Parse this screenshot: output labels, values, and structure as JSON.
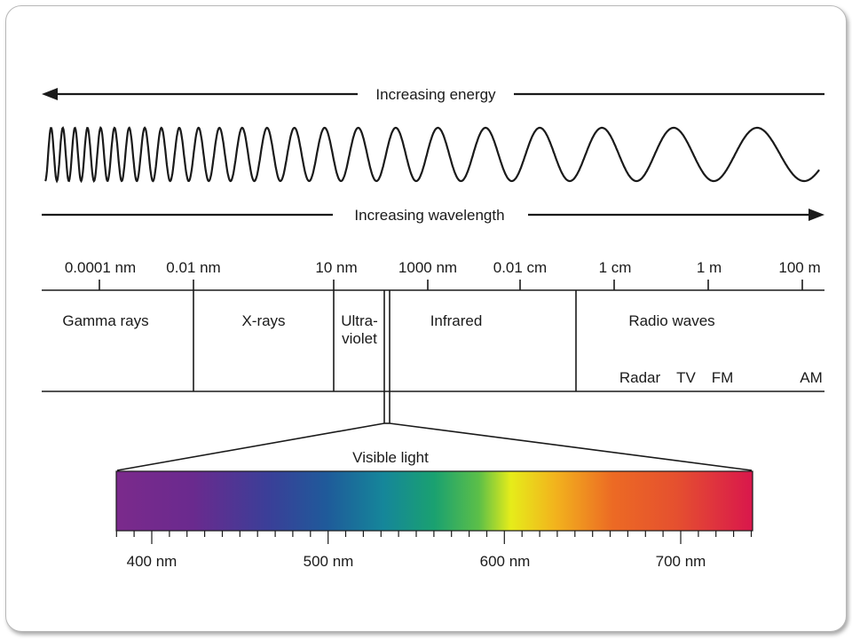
{
  "energy_label": "Increasing energy",
  "wavelength_label": "Increasing wavelength",
  "scale_ticks": [
    "0.0001 nm",
    "0.01 nm",
    "10 nm",
    "1000 nm",
    "0.01 cm",
    "1 cm",
    "1 m",
    "100 m"
  ],
  "regions": {
    "gamma": "Gamma rays",
    "xrays": "X-rays",
    "uv_line1": "Ultra-",
    "uv_line2": "violet",
    "infrared": "Infrared",
    "radio": "Radio waves"
  },
  "radio_bands": [
    "Radar",
    "TV",
    "FM",
    "AM"
  ],
  "visible_label": "Visible light",
  "visible_ticks": [
    "400 nm",
    "500 nm",
    "600 nm",
    "700 nm"
  ],
  "spectrum_colors": [
    "#7b2a8c",
    "#6a2a8e",
    "#3a3f98",
    "#1f5a9a",
    "#15869a",
    "#1aa170",
    "#5cbf48",
    "#e6ec1a",
    "#f2b31d",
    "#ec6a24",
    "#e5502f",
    "#d9174c"
  ]
}
